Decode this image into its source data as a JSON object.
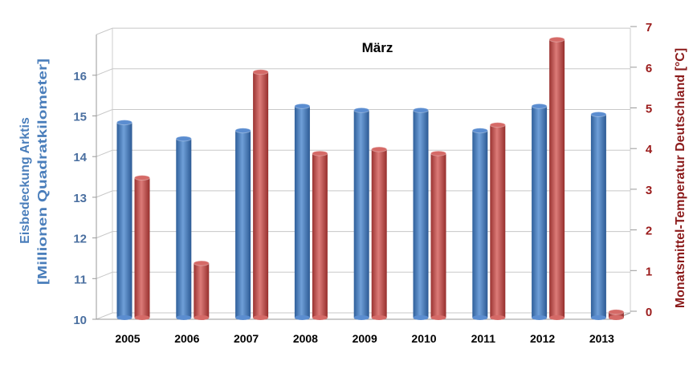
{
  "chart_data": {
    "type": "bar",
    "title": "März",
    "categories": [
      "2005",
      "2006",
      "2007",
      "2008",
      "2009",
      "2010",
      "2011",
      "2012",
      "2013"
    ],
    "series": [
      {
        "name": "Eisbedeckung Arktis",
        "axis": "left",
        "color": "#4a7ebb",
        "values": [
          14.8,
          14.4,
          14.6,
          15.2,
          15.1,
          15.1,
          14.6,
          15.2,
          15.0
        ]
      },
      {
        "name": "Monatsmittel-Temperatur Deutschland",
        "axis": "right",
        "color": "#c0504d",
        "values": [
          3.4,
          1.3,
          6.0,
          4.0,
          4.1,
          4.0,
          4.7,
          6.8,
          0.1
        ]
      }
    ],
    "ylabel_left": [
      "Eisbedeckung Arktis",
      "[Millionen Quadratkilometer]"
    ],
    "ylabel_right": "Monatsmittel-Temperatur  Deutschland  [°C]",
    "ylim_left": [
      10,
      17
    ],
    "ylim_right": [
      0,
      7
    ],
    "yticks_left": [
      "10",
      "11",
      "12",
      "13",
      "14",
      "15",
      "16"
    ],
    "yticks_right": [
      "0",
      "1",
      "2",
      "3",
      "4",
      "5",
      "6",
      "7"
    ],
    "grid": true
  }
}
